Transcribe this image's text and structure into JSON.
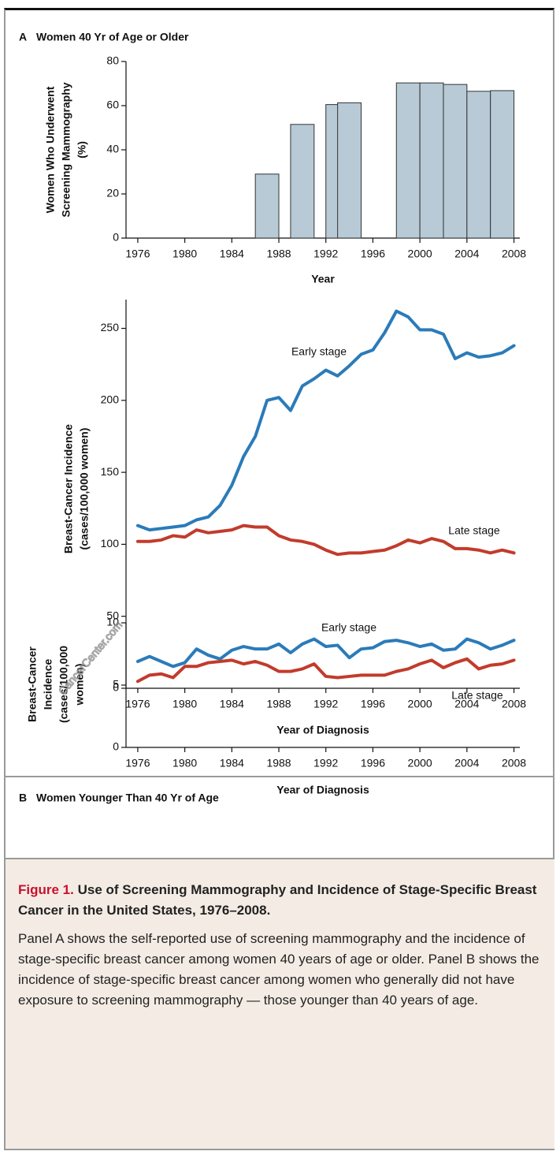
{
  "chart_data": [
    {
      "type": "bar",
      "panel": "A",
      "title": "Women 40 Yr of Age or Older",
      "x": [
        1987,
        1990,
        1993,
        1994,
        1999,
        2001,
        2003,
        2005,
        2007
      ],
      "values": [
        29,
        51.5,
        60.5,
        61.3,
        70.3,
        70.3,
        69.6,
        66.5,
        66.8
      ],
      "color": "#b7cad6",
      "xlim": [
        1975,
        2008.5
      ],
      "xticks": [
        1976,
        1980,
        1984,
        1988,
        1992,
        1996,
        2000,
        2004,
        2008
      ],
      "ylim": [
        0,
        80
      ],
      "yticks": [
        0,
        20,
        40,
        60,
        80
      ],
      "xlabel": "Year",
      "ylabel": [
        "Women Who Underwent",
        "Screening Mammography",
        "(%)"
      ]
    },
    {
      "type": "line",
      "x": [
        1976,
        1977,
        1978,
        1979,
        1980,
        1981,
        1982,
        1983,
        1984,
        1985,
        1986,
        1987,
        1988,
        1989,
        1990,
        1991,
        1992,
        1993,
        1994,
        1995,
        1996,
        1997,
        1998,
        1999,
        2000,
        2001,
        2002,
        2003,
        2004,
        2005,
        2006,
        2007,
        2008
      ],
      "series": [
        {
          "name": "Early stage",
          "color": "#2b7bb9",
          "values": [
            113,
            110,
            111,
            112,
            113,
            117,
            119,
            127,
            141,
            161,
            175,
            200,
            202,
            193,
            210,
            215,
            221,
            217,
            224,
            232,
            235,
            247,
            262,
            258,
            249,
            249,
            246,
            229,
            233,
            230,
            231,
            233,
            238
          ]
        },
        {
          "name": "Late stage",
          "color": "#c23b2c",
          "values": [
            102,
            102,
            103,
            106,
            105,
            110,
            108,
            109,
            110,
            113,
            112,
            112,
            106,
            103,
            102,
            100,
            96,
            93,
            94,
            94,
            95,
            96,
            99,
            103,
            101,
            104,
            102,
            97,
            97,
            96,
            94,
            96,
            94
          ]
        }
      ],
      "xlim": [
        1975,
        2008.5
      ],
      "xticks": [
        1976,
        1980,
        1984,
        1988,
        1992,
        1996,
        2000,
        2004,
        2008
      ],
      "ylim": [
        0,
        270
      ],
      "yticks": [
        0,
        50,
        100,
        150,
        200,
        250
      ],
      "xlabel": "Year of Diagnosis",
      "ylabel": [
        "Breast-Cancer Incidence",
        "(cases/100,000 women)"
      ]
    },
    {
      "type": "line",
      "panel": "B",
      "title": "Women Younger Than 40 Yr of Age",
      "x": [
        1976,
        1977,
        1978,
        1979,
        1980,
        1981,
        1982,
        1983,
        1984,
        1985,
        1986,
        1987,
        1988,
        1989,
        1990,
        1991,
        1992,
        1993,
        1994,
        1995,
        1996,
        1997,
        1998,
        1999,
        2000,
        2001,
        2002,
        2003,
        2004,
        2005,
        2006,
        2007,
        2008
      ],
      "series": [
        {
          "name": "Early stage",
          "color": "#2b7bb9",
          "values": [
            6.9,
            7.3,
            6.9,
            6.5,
            6.8,
            7.9,
            7.4,
            7.1,
            7.8,
            8.1,
            7.9,
            7.9,
            8.3,
            7.6,
            8.3,
            8.7,
            8.1,
            8.2,
            7.2,
            7.9,
            8.0,
            8.5,
            8.6,
            8.4,
            8.1,
            8.3,
            7.8,
            7.9,
            8.7,
            8.4,
            7.9,
            8.2,
            8.6
          ]
        },
        {
          "name": "Late stage",
          "color": "#c23b2c",
          "values": [
            5.3,
            5.8,
            5.9,
            5.6,
            6.5,
            6.5,
            6.8,
            6.9,
            7.0,
            6.7,
            6.9,
            6.6,
            6.1,
            6.1,
            6.3,
            6.7,
            5.7,
            5.6,
            5.7,
            5.8,
            5.8,
            5.8,
            6.1,
            6.3,
            6.7,
            7.0,
            6.4,
            6.8,
            7.1,
            6.3,
            6.6,
            6.7,
            7.0
          ]
        }
      ],
      "xlim": [
        1975,
        2008.5
      ],
      "xticks": [
        1976,
        1980,
        1984,
        1988,
        1992,
        1996,
        2000,
        2004,
        2008
      ],
      "ylim": [
        0,
        10
      ],
      "yticks": [
        0,
        5,
        10
      ],
      "xlabel": "Year of Diagnosis",
      "ylabel": [
        "Breast-Cancer",
        "Incidence",
        "(cases/100,000",
        "women)"
      ]
    }
  ],
  "figure_label": "Figure 1.",
  "figure_title": "Use of Screening Mammography and Incidence of Stage-Specific Breast Cancer in the United States, 1976–2008.",
  "figure_text": "Panel A shows the self-reported use of screening mammography and the incidence of stage-specific breast cancer among women 40 years of age or older. Panel B shows the incidence of stage-specific breast cancer among women who generally did not have exposure to screening mammography — those younger than 40 years of age.",
  "watermark": "CancerCenter.com"
}
